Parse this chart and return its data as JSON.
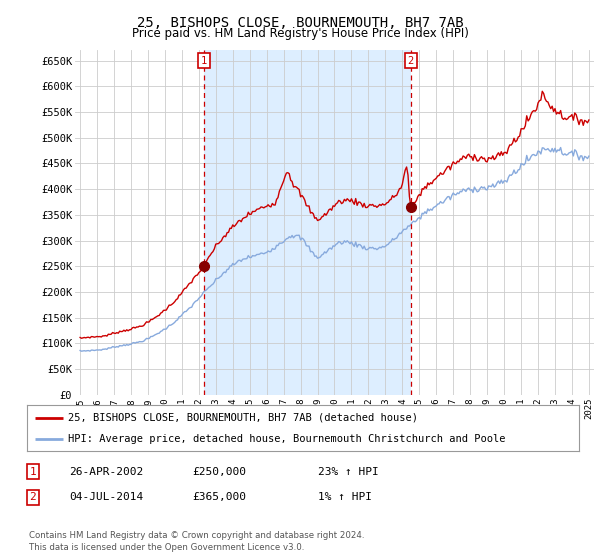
{
  "title": "25, BISHOPS CLOSE, BOURNEMOUTH, BH7 7AB",
  "subtitle": "Price paid vs. HM Land Registry's House Price Index (HPI)",
  "ylim": [
    0,
    670000
  ],
  "yticks": [
    0,
    50000,
    100000,
    150000,
    200000,
    250000,
    300000,
    350000,
    400000,
    450000,
    500000,
    550000,
    600000,
    650000
  ],
  "transaction1": {
    "date": "26-APR-2002",
    "price": 250000,
    "pct": "23%",
    "dir": "↑",
    "label": "1",
    "x": 2002.31
  },
  "transaction2": {
    "date": "04-JUL-2014",
    "price": 365000,
    "pct": "1%",
    "dir": "↑",
    "label": "2",
    "x": 2014.5
  },
  "legend_line1": "25, BISHOPS CLOSE, BOURNEMOUTH, BH7 7AB (detached house)",
  "legend_line2": "HPI: Average price, detached house, Bournemouth Christchurch and Poole",
  "footer1": "Contains HM Land Registry data © Crown copyright and database right 2024.",
  "footer2": "This data is licensed under the Open Government Licence v3.0.",
  "price_color": "#cc0000",
  "hpi_color": "#88aadd",
  "shade_color": "#ddeeff",
  "bg_color": "#ffffff",
  "grid_color": "#cccccc"
}
